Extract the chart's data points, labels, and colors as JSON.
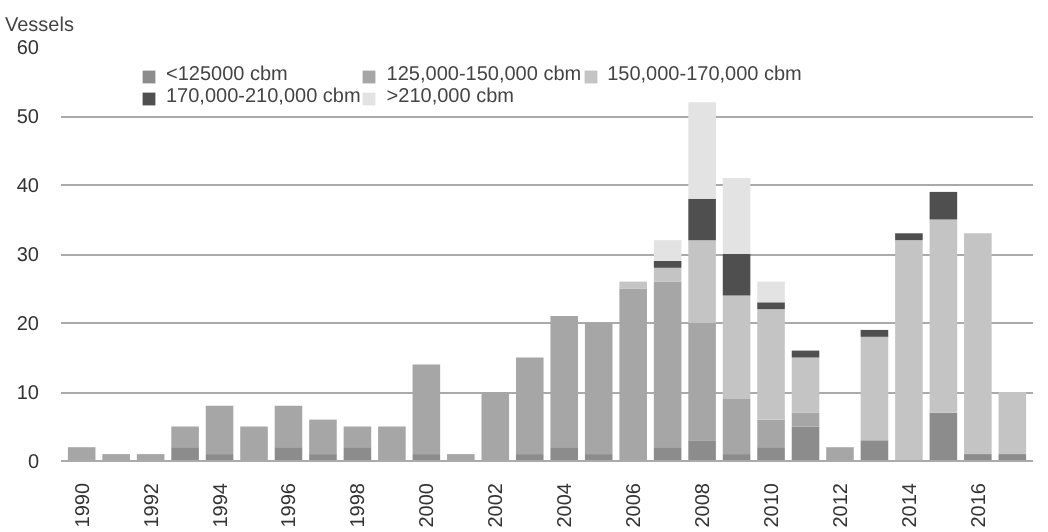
{
  "chart_data": {
    "type": "bar",
    "stacked": true,
    "ylabel": "Vessels",
    "categories": [
      "1990",
      null,
      "1992",
      null,
      "1994",
      null,
      "1996",
      null,
      "1998",
      null,
      "2000",
      null,
      "2002",
      null,
      "2004",
      null,
      "2006",
      null,
      "2008",
      null,
      "2010",
      null,
      "2012",
      null,
      "2014",
      null,
      "2016",
      null
    ],
    "series": [
      {
        "name": "<125000 cbm",
        "color": "#8c8c8c",
        "values": [
          0,
          0,
          0,
          2,
          1,
          0,
          2,
          1,
          2,
          0,
          1,
          0,
          0,
          1,
          2,
          1,
          0,
          2,
          3,
          1,
          2,
          5,
          0,
          3,
          0,
          7,
          1,
          1
        ]
      },
      {
        "name": "125,000-150,000 cbm",
        "color": "#a6a6a6",
        "values": [
          2,
          1,
          1,
          3,
          7,
          5,
          6,
          5,
          3,
          5,
          13,
          1,
          10,
          14,
          19,
          19,
          25,
          24,
          17,
          8,
          4,
          2,
          2,
          0,
          0,
          0,
          0,
          0
        ]
      },
      {
        "name": "150,000-170,000 cbm",
        "color": "#c4c4c4",
        "values": [
          0,
          0,
          0,
          0,
          0,
          0,
          0,
          0,
          0,
          0,
          0,
          0,
          0,
          0,
          0,
          0,
          1,
          2,
          12,
          15,
          16,
          8,
          0,
          15,
          32,
          28,
          32,
          9
        ]
      },
      {
        "name": "170,000-210,000 cbm",
        "color": "#4f4f4f",
        "values": [
          0,
          0,
          0,
          0,
          0,
          0,
          0,
          0,
          0,
          0,
          0,
          0,
          0,
          0,
          0,
          0,
          0,
          1,
          6,
          6,
          1,
          1,
          0,
          1,
          1,
          4,
          0,
          0
        ]
      },
      {
        "name": ">210,000 cbm",
        "color": "#e3e3e3",
        "values": [
          0,
          0,
          0,
          0,
          0,
          0,
          0,
          0,
          0,
          0,
          0,
          0,
          0,
          0,
          0,
          0,
          0,
          3,
          14,
          11,
          3,
          0,
          0,
          0,
          0,
          0,
          0,
          0
        ]
      }
    ],
    "ylim": [
      0,
      60
    ],
    "yticks": [
      0,
      10,
      20,
      30,
      40,
      50,
      60
    ],
    "grid": "y",
    "legend": "top left"
  }
}
